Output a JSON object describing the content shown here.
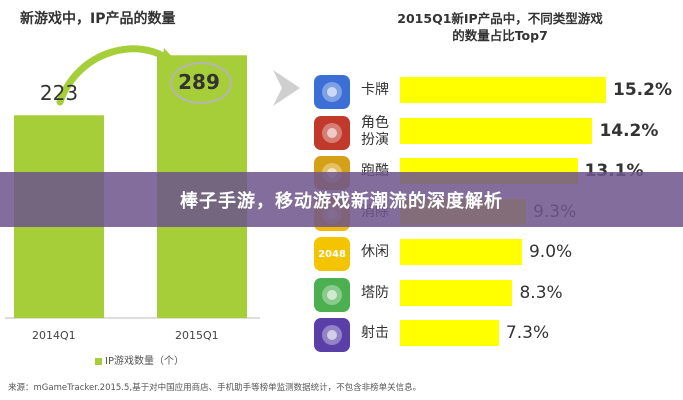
{
  "chart_data": [
    {
      "type": "bar",
      "title": "新游戏中，IP产品的数量",
      "categories": [
        "2014Q1",
        "2015Q1"
      ],
      "series": [
        {
          "name": "IP游戏数量（个）",
          "values": [
            223,
            289
          ]
        }
      ],
      "ylim": [
        0,
        330
      ],
      "legend": "bottom",
      "color": "#a6ce39"
    },
    {
      "type": "bar",
      "orientation": "horizontal",
      "title_line1": "2015Q1新IP产品中，不同类型游戏",
      "title_line2": "的数量占比Top7",
      "categories": [
        "卡牌",
        "角色扮演",
        "跑酷",
        "消除",
        "休闲",
        "塔防",
        "射击"
      ],
      "category_lines": [
        [
          "卡牌"
        ],
        [
          "角色",
          "扮演"
        ],
        [
          "跑酷"
        ],
        [
          "消除"
        ],
        [
          "休闲"
        ],
        [
          "塔防"
        ],
        [
          "射击"
        ]
      ],
      "values": [
        15.2,
        14.2,
        13.1,
        9.3,
        9.0,
        8.3,
        7.3
      ],
      "value_labels": [
        "15.2%",
        "14.2%",
        "13.1%",
        "9.3%",
        "9.0%",
        "8.3%",
        "7.3%"
      ],
      "xlim": [
        0,
        15.2
      ],
      "color": "#ffff00"
    }
  ],
  "icons": [
    "card-game-icon",
    "rpg-game-icon",
    "parkour-game-icon",
    "match-game-icon",
    "2048-game-icon",
    "tower-defense-game-icon",
    "shooter-game-icon"
  ],
  "icon_text": {
    "casual": "2048"
  },
  "icon_colors": [
    "#3b6fd6",
    "#c0392b",
    "#d4a017",
    "#f2b90d",
    "#f5c400",
    "#4caf50",
    "#5b3fa8"
  ],
  "banner": {
    "text": "棒子手游，移动游戏新潮流的深度解析"
  },
  "source": "来源：mGameTracker.2015.5,基于对中国应用商店、手机助手等榜单监测数据统计，不包含非榜单关信息。"
}
